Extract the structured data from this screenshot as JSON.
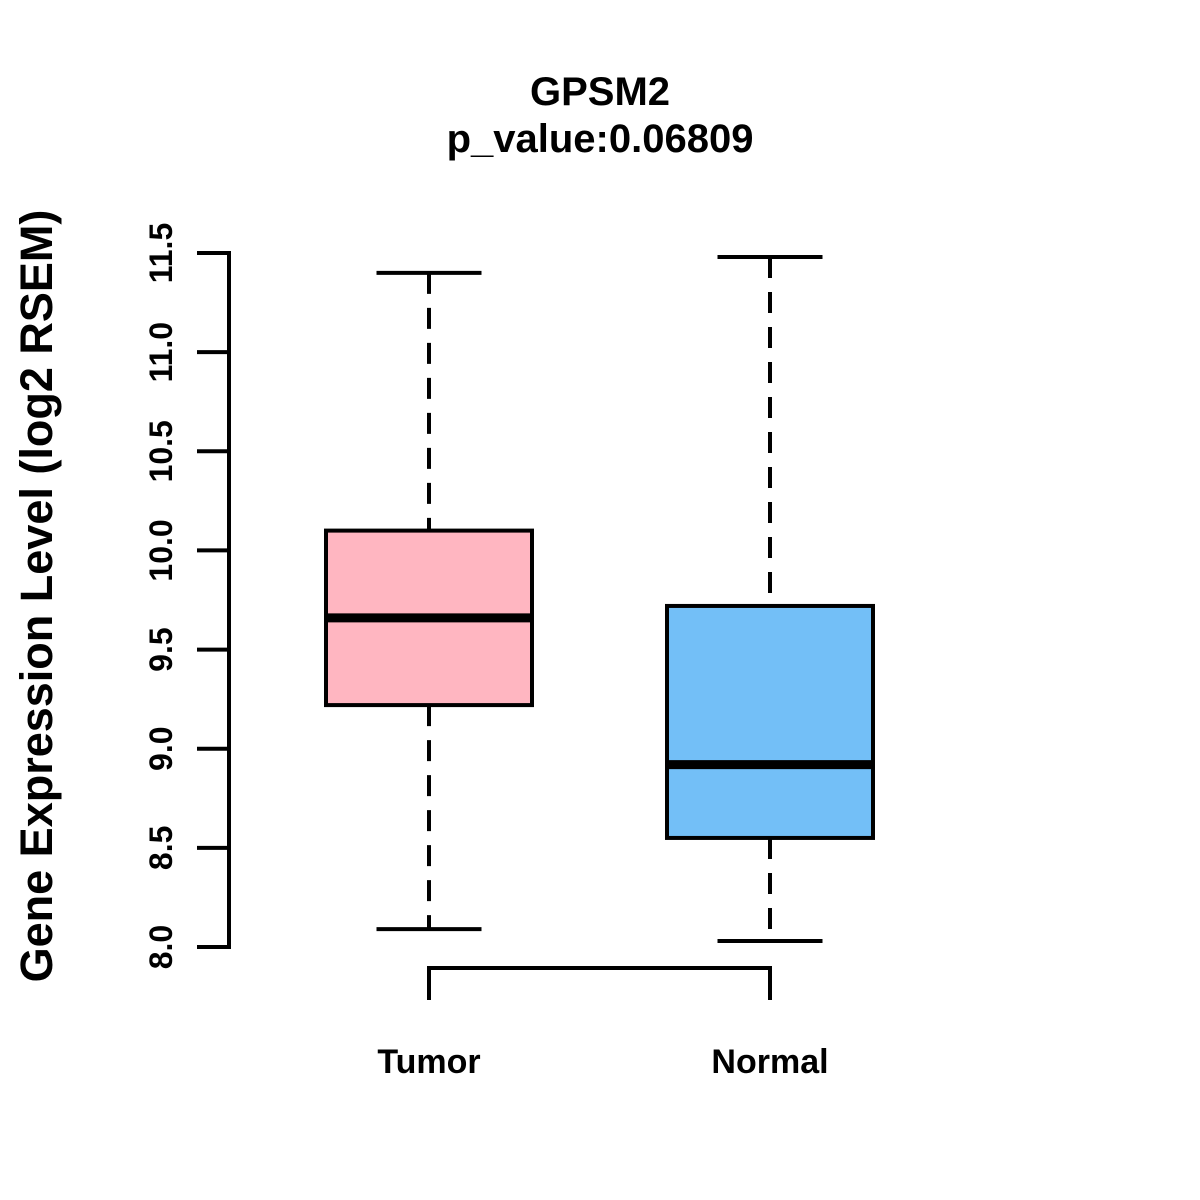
{
  "figure": {
    "title": "GPSM2",
    "subtitle": "p_value:0.06809",
    "y_axis_label": "Gene Expression Level (log2 RSEM)"
  },
  "chart_data": {
    "type": "boxplot",
    "title": "GPSM2",
    "subtitle": "p_value:0.06809",
    "xlabel": "",
    "ylabel": "Gene Expression Level (log2 RSEM)",
    "categories": [
      "Tumor",
      "Normal"
    ],
    "series": [
      {
        "name": "Tumor",
        "fill_color": "#FFB6C1",
        "whisker_low": 8.09,
        "q1": 9.22,
        "median": 9.66,
        "q3": 10.1,
        "whisker_high": 11.4
      },
      {
        "name": "Normal",
        "fill_color": "#73BFF7",
        "whisker_low": 8.03,
        "q1": 8.55,
        "median": 8.92,
        "q3": 9.72,
        "whisker_high": 11.48
      }
    ],
    "ylim": [
      8.0,
      11.5
    ],
    "yticks": [
      8.0,
      8.5,
      9.0,
      9.5,
      10.0,
      10.5,
      11.0,
      11.5
    ],
    "ytick_labels": [
      "8.0",
      "8.5",
      "9.0",
      "9.5",
      "10.0",
      "10.5",
      "11.0",
      "11.5"
    ],
    "grid": false,
    "legend": "none",
    "comparison_bracket": {
      "from": "Tumor",
      "to": "Normal"
    },
    "colors": {
      "axis": "#000000",
      "tumor_fill": "#FFB6C1",
      "normal_fill": "#73BFF7",
      "background": "#FFFFFF"
    }
  }
}
